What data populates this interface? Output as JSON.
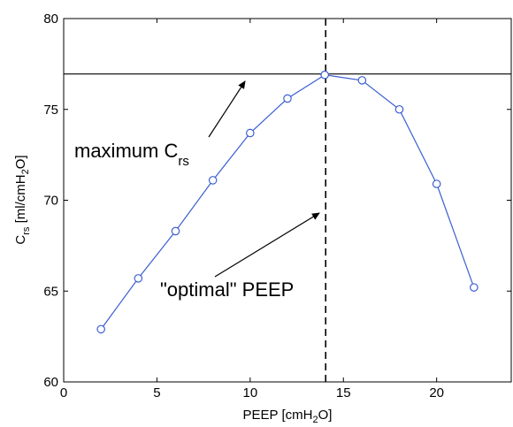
{
  "chart_data": {
    "type": "line",
    "title": "",
    "xlabel": {
      "main": "PEEP [cmH",
      "sub": "2",
      "tail": "O]"
    },
    "ylabel": {
      "c": "C",
      "csub": "rs",
      "mid": " [ml/cmH",
      "sub": "2",
      "tail": "O]"
    },
    "xlim": [
      0,
      24
    ],
    "ylim": [
      60,
      80
    ],
    "xticks": [
      0,
      5,
      10,
      15,
      20
    ],
    "yticks": [
      60,
      65,
      70,
      75,
      80
    ],
    "grid": false,
    "line_color": "#3b5fd0",
    "series": [
      {
        "x": [
          2,
          4,
          6,
          8,
          10,
          12,
          14,
          16,
          18,
          20,
          22
        ],
        "y": [
          62.9,
          65.7,
          68.3,
          71.1,
          73.7,
          75.6,
          76.9,
          76.6,
          75.0,
          70.9,
          65.2
        ],
        "marker": "circle"
      }
    ],
    "reference_lines": {
      "horizontal_y": 76.95,
      "vertical_x": 14.05
    },
    "annotations": {
      "maximum": {
        "main": "maximum C",
        "sub": "rs"
      },
      "optimal": {
        "text": "\"optimal\" PEEP"
      }
    }
  }
}
